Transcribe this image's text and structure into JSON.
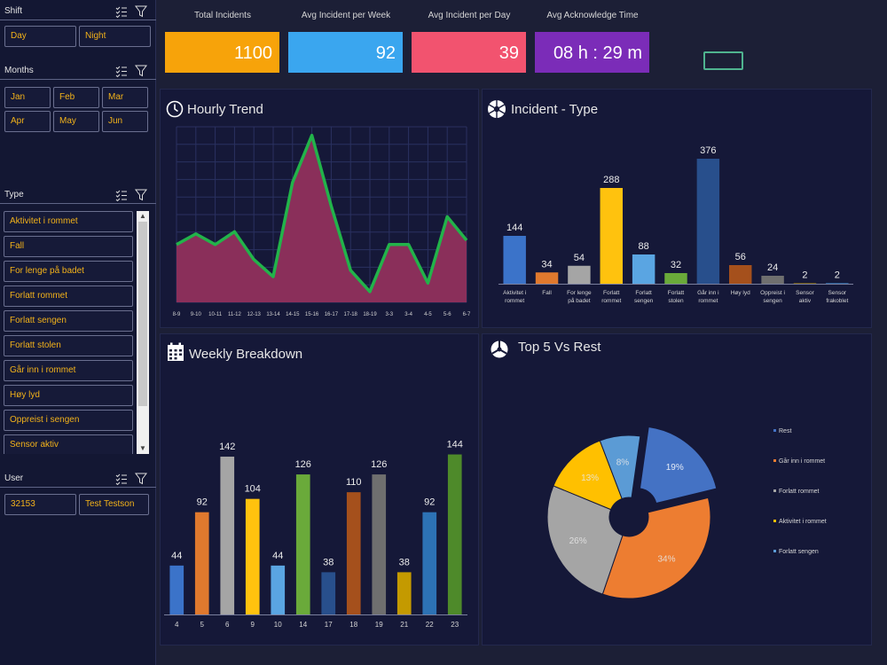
{
  "sidebar": {
    "shift": {
      "title": "Shift",
      "options": [
        "Day",
        "Night"
      ]
    },
    "months": {
      "title": "Months",
      "options": [
        "Jan",
        "Feb",
        "Mar",
        "Apr",
        "May",
        "Jun"
      ]
    },
    "type": {
      "title": "Type",
      "options": [
        "Aktivitet i rommet",
        "Fall",
        "For lenge på badet",
        "Forlatt rommet",
        "Forlatt sengen",
        "Forlatt stolen",
        "Går inn i rommet",
        "Høy lyd",
        "Oppreist i sengen",
        "Sensor aktiv"
      ]
    },
    "user": {
      "title": "User",
      "options": [
        "32153",
        "Test Testson"
      ]
    }
  },
  "kpis": [
    {
      "label": "Total Incidents",
      "value": "1100",
      "color": "#f7a30a"
    },
    {
      "label": "Avg Incident per Week",
      "value": "92",
      "color": "#3aa6ef"
    },
    {
      "label": "Avg Incident per Day",
      "value": "39",
      "color": "#f2536f"
    },
    {
      "label": "Avg Acknowledge Time",
      "value": "08 h : 29 m",
      "color": "#7b2cb8"
    }
  ],
  "panels": {
    "hourly": {
      "title": "Hourly Trend"
    },
    "incident_type": {
      "title": "Incident - Type"
    },
    "weekly": {
      "title": "Weekly Breakdown"
    },
    "top5": {
      "title": "Top 5 Vs Rest"
    }
  },
  "chart_data": [
    {
      "id": "hourly",
      "type": "area",
      "categories": [
        "8-9",
        "9-10",
        "10-11",
        "11-12",
        "12-13",
        "13-14",
        "14-15",
        "15-16",
        "16-17",
        "17-18",
        "18-19",
        "3-3",
        "3-4",
        "4-5",
        "5-6",
        "6-7"
      ],
      "values": [
        27,
        32,
        27,
        33,
        20,
        12,
        56,
        78,
        45,
        15,
        5,
        27,
        27,
        9,
        40,
        29
      ],
      "ylim": [
        0,
        82
      ],
      "grid": true,
      "colors": {
        "fill": "#8a2f5a",
        "line": "#22b34a"
      }
    },
    {
      "id": "incident_type",
      "type": "bar",
      "categories": [
        "Aktivitet i rommet",
        "Fall",
        "For lenge på badet",
        "Forlatt rommet",
        "Forlatt sengen",
        "Forlatt stolen",
        "Går inn i rommet",
        "Høy lyd",
        "Oppreist i sengen",
        "Sensor aktiv",
        "Sensor frakoblet"
      ],
      "values": [
        144,
        34,
        54,
        288,
        88,
        32,
        376,
        56,
        24,
        2,
        2
      ],
      "colors": [
        "#3b73c9",
        "#e0792e",
        "#a5a5a5",
        "#ffc20e",
        "#5aa5e2",
        "#6aaa3a",
        "#284f8c",
        "#a5501c",
        "#6f6f6f",
        "#8a6a00",
        "#2d72b5"
      ],
      "ylim": [
        0,
        400
      ]
    },
    {
      "id": "weekly",
      "type": "bar",
      "categories": [
        "4",
        "5",
        "6",
        "9",
        "10",
        "14",
        "17",
        "18",
        "19",
        "21",
        "22",
        "23"
      ],
      "values": [
        44,
        92,
        142,
        104,
        44,
        126,
        38,
        110,
        126,
        38,
        92,
        144
      ],
      "colors": [
        "#3b73c9",
        "#e0792e",
        "#a5a5a5",
        "#ffc20e",
        "#5aa5e2",
        "#6aaa3a",
        "#284f8c",
        "#a5501c",
        "#6f6f6f",
        "#c49a00",
        "#2d72b5",
        "#4e8a2a"
      ],
      "ylim": [
        0,
        150
      ]
    },
    {
      "id": "top5",
      "type": "pie",
      "labels": [
        "Rest",
        "Går inn i rommet",
        "Forlatt rommet",
        "Aktivitet i rommet",
        "Forlatt sengen"
      ],
      "values": [
        19,
        34,
        26,
        13,
        8
      ],
      "value_labels": [
        "19%",
        "34%",
        "26%",
        "13%",
        "8%"
      ],
      "colors": [
        "#4472c4",
        "#ed7d31",
        "#a5a5a5",
        "#ffc000",
        "#5b9bd5"
      ],
      "legend": "right"
    }
  ]
}
